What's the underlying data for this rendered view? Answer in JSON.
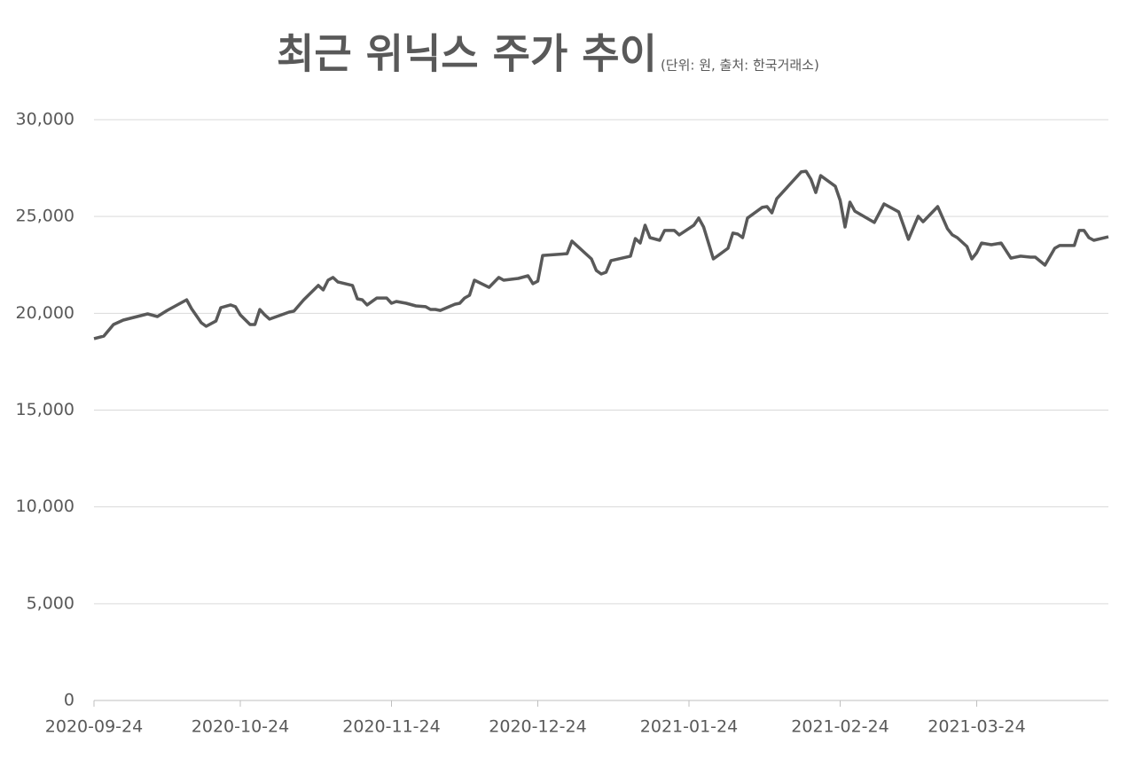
{
  "chart_data": {
    "type": "line",
    "title": "최근 위닉스 주가 추이",
    "subtitle": "(단위: 원, 출처: 한국거래소)",
    "x": [
      "2020-09-24",
      "2020-09-26",
      "2020-09-28",
      "2020-09-30",
      "2020-10-05",
      "2020-10-07",
      "2020-10-09",
      "2020-10-13",
      "2020-10-14",
      "2020-10-16",
      "2020-10-17",
      "2020-10-19",
      "2020-10-20",
      "2020-10-22",
      "2020-10-23",
      "2020-10-24",
      "2020-10-26",
      "2020-10-27",
      "2020-10-28",
      "2020-10-29",
      "2020-10-30",
      "2020-11-03",
      "2020-11-04",
      "2020-11-06",
      "2020-11-09",
      "2020-11-10",
      "2020-11-11",
      "2020-11-12",
      "2020-11-13",
      "2020-11-16",
      "2020-11-17",
      "2020-11-18",
      "2020-11-19",
      "2020-11-21",
      "2020-11-23",
      "2020-11-24",
      "2020-11-25",
      "2020-11-27",
      "2020-11-29",
      "2020-12-01",
      "2020-12-02",
      "2020-12-03",
      "2020-12-04",
      "2020-12-07",
      "2020-12-08",
      "2020-12-09",
      "2020-12-10",
      "2020-12-11",
      "2020-12-14",
      "2020-12-16",
      "2020-12-17",
      "2020-12-20",
      "2020-12-22",
      "2020-12-23",
      "2020-12-24",
      "2020-12-25",
      "2020-12-30",
      "2020-12-31",
      "2021-01-04",
      "2021-01-05",
      "2021-01-06",
      "2021-01-07",
      "2021-01-08",
      "2021-01-12",
      "2021-01-13",
      "2021-01-14",
      "2021-01-15",
      "2021-01-16",
      "2021-01-18",
      "2021-01-19",
      "2021-01-21",
      "2021-01-22",
      "2021-01-25",
      "2021-01-26",
      "2021-01-27",
      "2021-01-29",
      "2021-01-30",
      "2021-02-01",
      "2021-02-02",
      "2021-02-03",
      "2021-02-04",
      "2021-02-05",
      "2021-02-08",
      "2021-02-09",
      "2021-02-10",
      "2021-02-11",
      "2021-02-16",
      "2021-02-17",
      "2021-02-18",
      "2021-02-19",
      "2021-02-20",
      "2021-02-23",
      "2021-02-24",
      "2021-02-25",
      "2021-02-26",
      "2021-02-27",
      "2021-03-03",
      "2021-03-05",
      "2021-03-08",
      "2021-03-10",
      "2021-03-12",
      "2021-03-13",
      "2021-03-16",
      "2021-03-18",
      "2021-03-19",
      "2021-03-20",
      "2021-03-22",
      "2021-03-23",
      "2021-03-24",
      "2021-03-25",
      "2021-03-27",
      "2021-03-29",
      "2021-03-31",
      "2021-04-02",
      "2021-04-04",
      "2021-04-05",
      "2021-04-07",
      "2021-04-09",
      "2021-04-10",
      "2021-04-13",
      "2021-04-14",
      "2021-04-15",
      "2021-04-16",
      "2021-04-17",
      "2021-04-20"
    ],
    "series": [
      {
        "name": "주가",
        "color": "#595959",
        "values": [
          18690,
          18820,
          19420,
          19650,
          19970,
          19830,
          20150,
          20700,
          20240,
          19510,
          19330,
          19600,
          20290,
          20430,
          20340,
          19920,
          19420,
          19420,
          20200,
          19920,
          19700,
          20060,
          20110,
          20700,
          21440,
          21210,
          21710,
          21850,
          21620,
          21440,
          20750,
          20700,
          20430,
          20790,
          20790,
          20520,
          20610,
          20520,
          20380,
          20340,
          20200,
          20200,
          20150,
          20470,
          20520,
          20790,
          20930,
          21710,
          21340,
          21850,
          21710,
          21800,
          21940,
          21530,
          21660,
          22990,
          23080,
          23730,
          22810,
          22210,
          22030,
          22120,
          22720,
          22950,
          23860,
          23630,
          24550,
          23910,
          23770,
          24280,
          24280,
          24050,
          24550,
          24920,
          24460,
          22810,
          22990,
          23360,
          24140,
          24090,
          23910,
          24920,
          25470,
          25510,
          25190,
          25920,
          27300,
          27340,
          26930,
          26240,
          27110,
          26560,
          25830,
          24460,
          25740,
          25280,
          24690,
          25650,
          25240,
          23820,
          25010,
          24730,
          25510,
          24370,
          24050,
          23910,
          23450,
          22810,
          23130,
          23630,
          23540,
          23630,
          22850,
          22950,
          22900,
          22900,
          22490,
          23360,
          23500,
          23500,
          24280,
          24280,
          23910,
          23770,
          23950
        ]
      }
    ],
    "xlim": [
      "2020-09-24",
      "2021-04-20"
    ],
    "xticks": [
      "2020-09-24",
      "2020-10-24",
      "2020-11-24",
      "2020-12-24",
      "2021-01-24",
      "2021-02-24",
      "2021-03-24"
    ],
    "ylim": [
      0,
      30000
    ],
    "yticks": [
      0,
      {
        "value": 5000,
        "label": "5,000"
      },
      {
        "value": 10000,
        "label": "10,000"
      },
      {
        "value": 15000,
        "label": "15,000"
      },
      {
        "value": 20000,
        "label": "20,000"
      },
      {
        "value": 25000,
        "label": "25,000"
      },
      {
        "value": 30000,
        "label": "30,000"
      }
    ],
    "grid": true
  }
}
